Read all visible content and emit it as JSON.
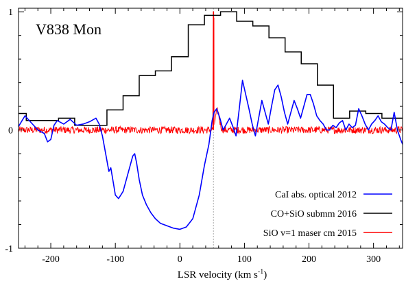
{
  "chart_data": {
    "type": "line",
    "title": "V838 Mon",
    "xlabel": "LSR velocity (km s",
    "xlabel_sup": "-1",
    "xlabel_tail": ")",
    "ylabel": "",
    "xlim": [
      -250,
      345
    ],
    "ylim": [
      -1,
      1.03
    ],
    "x_ticks": [
      -200,
      -100,
      0,
      100,
      200,
      300
    ],
    "x_tick_labels": [
      "-200",
      "-100",
      "0",
      "100",
      "200",
      "300"
    ],
    "y_ticks": [
      -1,
      0,
      1
    ],
    "y_tick_labels": [
      "-1",
      "0",
      "1"
    ],
    "grid": false,
    "legend_position": "bottom-right",
    "reference_line": {
      "x": 52,
      "style": "dotted",
      "color": "#aaaaaa"
    },
    "series": [
      {
        "name": "CaI abs. optical 2012",
        "color": "#0000ff",
        "kind": "line",
        "x": [
          -250,
          -240,
          -230,
          -220,
          -210,
          -205,
          -200,
          -195,
          -190,
          -180,
          -170,
          -160,
          -150,
          -140,
          -130,
          -125,
          -120,
          -115,
          -110,
          -107,
          -103,
          -100,
          -95,
          -88,
          -82,
          -77,
          -73,
          -70,
          -67,
          -63,
          -58,
          -52,
          -45,
          -38,
          -30,
          -20,
          -10,
          0,
          10,
          20,
          30,
          38,
          45,
          50,
          53,
          57,
          62,
          67,
          72,
          77,
          82,
          87,
          92,
          97,
          102,
          107,
          112,
          117,
          122,
          127,
          132,
          137,
          142,
          147,
          152,
          157,
          162,
          167,
          172,
          177,
          182,
          187,
          192,
          197,
          202,
          207,
          212,
          217,
          222,
          227,
          232,
          237,
          242,
          247,
          252,
          257,
          262,
          267,
          272,
          277,
          282,
          287,
          292,
          297,
          302,
          307,
          312,
          317,
          322,
          327,
          332,
          337,
          342,
          345
        ],
        "y": [
          0.03,
          0.12,
          0.06,
          0.0,
          -0.03,
          -0.1,
          -0.08,
          0.04,
          0.08,
          0.05,
          0.09,
          0.04,
          0.05,
          0.07,
          0.1,
          0.05,
          -0.05,
          -0.2,
          -0.35,
          -0.32,
          -0.45,
          -0.55,
          -0.58,
          -0.52,
          -0.4,
          -0.3,
          -0.22,
          -0.2,
          -0.28,
          -0.42,
          -0.55,
          -0.63,
          -0.7,
          -0.75,
          -0.79,
          -0.81,
          -0.83,
          -0.84,
          -0.82,
          -0.75,
          -0.55,
          -0.3,
          -0.12,
          0.08,
          0.15,
          0.18,
          0.1,
          0.0,
          0.05,
          0.1,
          0.03,
          -0.05,
          0.18,
          0.42,
          0.3,
          0.18,
          0.05,
          -0.05,
          0.1,
          0.25,
          0.15,
          0.05,
          0.2,
          0.34,
          0.38,
          0.28,
          0.15,
          0.05,
          0.15,
          0.25,
          0.18,
          0.1,
          0.2,
          0.3,
          0.3,
          0.22,
          0.12,
          0.08,
          0.05,
          0.0,
          0.0,
          0.04,
          0.02,
          0.06,
          0.08,
          0.0,
          0.05,
          0.02,
          0.04,
          0.18,
          0.12,
          0.05,
          0.0,
          0.05,
          0.08,
          0.12,
          0.07,
          0.05,
          0.02,
          0.0,
          0.15,
          0.0,
          -0.08,
          -0.12
        ]
      },
      {
        "name": "CO+SiO submm 2016",
        "color": "#000000",
        "kind": "step",
        "edges": [
          -250,
          -238,
          -213,
          -188,
          -163,
          -113,
          -88,
          -63,
          -38,
          -13,
          13,
          38,
          63,
          88,
          113,
          138,
          163,
          188,
          213,
          238,
          263,
          288,
          313,
          345
        ],
        "values": [
          0.14,
          0.08,
          0.08,
          0.1,
          0.04,
          0.17,
          0.29,
          0.46,
          0.5,
          0.62,
          0.89,
          0.97,
          1.0,
          0.92,
          0.88,
          0.78,
          0.66,
          0.56,
          0.38,
          0.1,
          0.16,
          0.14,
          0.1
        ]
      },
      {
        "name": "SiO v=1 maser cm 2015",
        "color": "#ff0000",
        "kind": "noisy-line",
        "noise_amplitude": 0.03,
        "peak_x": 52,
        "peak_y": 1.0,
        "bump": {
          "x": 58,
          "y": 0.16
        }
      }
    ]
  }
}
